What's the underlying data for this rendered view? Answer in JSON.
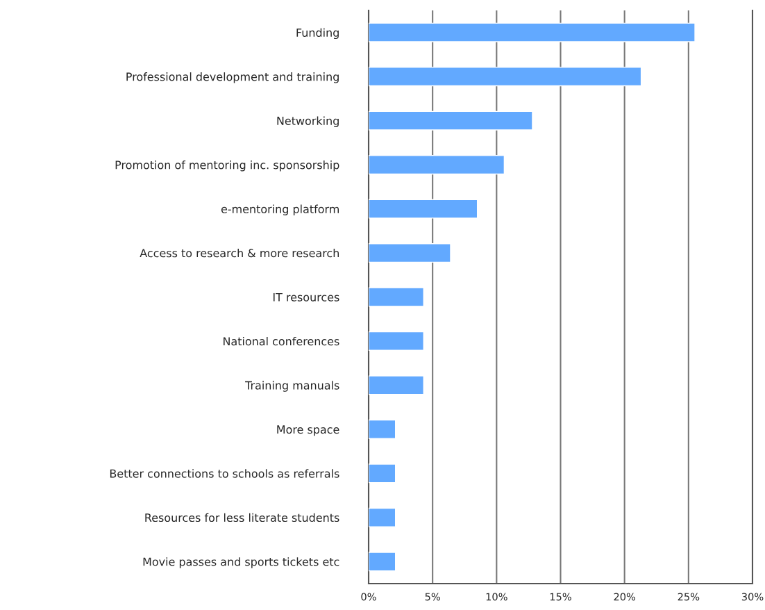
{
  "chart_data": {
    "type": "bar",
    "orientation": "horizontal",
    "categories": [
      "Funding",
      "Professional development and training",
      "Networking",
      "Promotion of mentoring inc. sponsorship",
      "e-mentoring platform",
      "Access to research & more research",
      "IT resources",
      "National conferences",
      "Training manuals",
      "More space",
      "Better connections to schools as referrals",
      "Resources for less literate students",
      "Movie passes and sports tickets etc"
    ],
    "values": [
      25.5,
      21.3,
      12.8,
      10.6,
      8.5,
      6.4,
      4.3,
      4.3,
      4.3,
      2.1,
      2.1,
      2.1,
      2.1
    ],
    "color": "#62a9ff",
    "xlim": [
      0,
      30
    ],
    "xticks": [
      {
        "value": 0,
        "label": "0%"
      },
      {
        "value": 5,
        "label": "5%"
      },
      {
        "value": 10,
        "label": "10%"
      },
      {
        "value": 15,
        "label": "15%"
      },
      {
        "value": 20,
        "label": "20%"
      },
      {
        "value": 25,
        "label": "25%"
      },
      {
        "value": 30,
        "label": "30%"
      }
    ],
    "grid": "x",
    "legend": false
  }
}
